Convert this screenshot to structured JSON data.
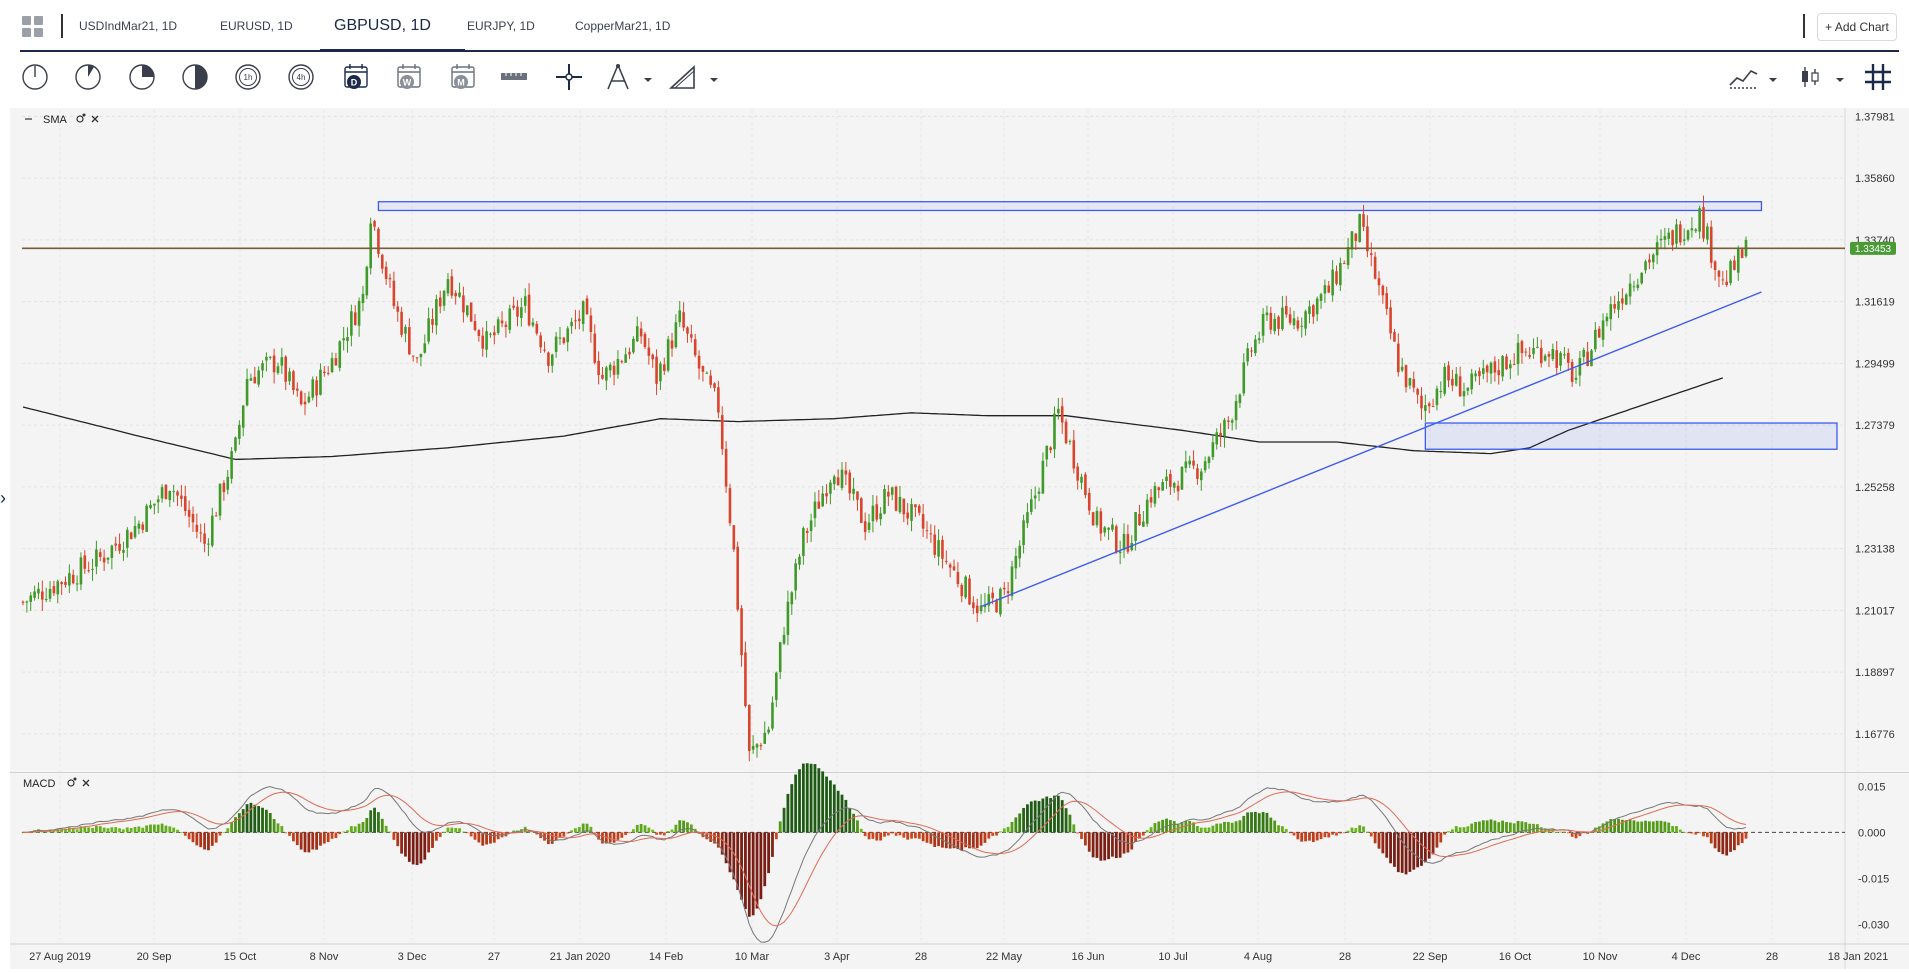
{
  "tabs": [
    {
      "label": "USDIndMar21, 1D",
      "active": false
    },
    {
      "label": "EURUSD, 1D",
      "active": false
    },
    {
      "label": "GBPUSD, 1D",
      "active": true
    },
    {
      "label": "EURJPY, 1D",
      "active": false
    },
    {
      "label": "CopperMar21, 1D",
      "active": false
    }
  ],
  "add_chart_label": "+ Add Chart",
  "toolbar": {
    "icons": [
      "clock-1-icon",
      "clock-2-icon",
      "clock-3-icon",
      "clock-4-icon",
      "clock-5-icon",
      "clock-6-icon",
      "calendar-day-icon",
      "calendar-week-icon",
      "calendar-month-icon",
      "ruler-icon",
      "crosshair-icon",
      "drawing-tool-icon",
      "pen-tool-icon",
      "line-style-icon",
      "candle-type-icon",
      "grid-toggle-icon"
    ],
    "calendar_letters": [
      "D",
      "W",
      "M"
    ]
  },
  "colors": {
    "bull": "#3f9a2a",
    "bear": "#d9452c",
    "accent": "#1b2a4a",
    "draw": "#3d5cf0",
    "sma": "#222222",
    "hline": "#7a5c33",
    "price_badge": "#4a9a36"
  },
  "price_panel": {
    "indicator_label": "SMA",
    "last_price": "1.33453"
  },
  "macd_panel": {
    "indicator_label": "MACD"
  },
  "chart_data": {
    "type": "candlestick",
    "symbol": "GBPUSD, 1D",
    "x_tick_labels": [
      "27 Aug 2019",
      "20 Sep",
      "15 Oct",
      "8 Nov",
      "3 Dec",
      "27",
      "21 Jan 2020",
      "14 Feb",
      "10 Mar",
      "3 Apr",
      "28",
      "22 May",
      "16 Jun",
      "10 Jul",
      "4 Aug",
      "28",
      "22 Sep",
      "16 Oct",
      "10 Nov",
      "4 Dec",
      "28",
      "18 Jan 2021"
    ],
    "y_ticks": [
      1.37981,
      1.3586,
      1.3374,
      1.31619,
      1.29499,
      1.27379,
      1.25258,
      1.23138,
      1.21017,
      1.18897,
      1.16776
    ],
    "ylim": [
      1.155,
      1.382
    ],
    "last_price": 1.33453,
    "price_path": [
      [
        0,
        1.213
      ],
      [
        20,
        1.228
      ],
      [
        30,
        1.24
      ],
      [
        38,
        1.254
      ],
      [
        47,
        1.233
      ],
      [
        55,
        1.266
      ],
      [
        58,
        1.29
      ],
      [
        66,
        1.296
      ],
      [
        72,
        1.28
      ],
      [
        80,
        1.296
      ],
      [
        88,
        1.318
      ],
      [
        90,
        1.347
      ],
      [
        96,
        1.315
      ],
      [
        102,
        1.295
      ],
      [
        110,
        1.325
      ],
      [
        120,
        1.302
      ],
      [
        130,
        1.315
      ],
      [
        136,
        1.298
      ],
      [
        145,
        1.312
      ],
      [
        150,
        1.29
      ],
      [
        160,
        1.305
      ],
      [
        164,
        1.29
      ],
      [
        170,
        1.31
      ],
      [
        176,
        1.29
      ],
      [
        180,
        1.28
      ],
      [
        184,
        1.23
      ],
      [
        188,
        1.16
      ],
      [
        193,
        1.17
      ],
      [
        197,
        1.205
      ],
      [
        202,
        1.235
      ],
      [
        210,
        1.26
      ],
      [
        218,
        1.24
      ],
      [
        224,
        1.25
      ],
      [
        232,
        1.24
      ],
      [
        240,
        1.225
      ],
      [
        248,
        1.21
      ],
      [
        254,
        1.215
      ],
      [
        262,
        1.25
      ],
      [
        268,
        1.278
      ],
      [
        278,
        1.24
      ],
      [
        285,
        1.232
      ],
      [
        292,
        1.25
      ],
      [
        305,
        1.26
      ],
      [
        312,
        1.275
      ],
      [
        318,
        1.3
      ],
      [
        322,
        1.31
      ],
      [
        330,
        1.31
      ],
      [
        338,
        1.32
      ],
      [
        346,
        1.342
      ],
      [
        350,
        1.325
      ],
      [
        356,
        1.295
      ],
      [
        362,
        1.279
      ],
      [
        368,
        1.29
      ],
      [
        374,
        1.286
      ],
      [
        386,
        1.298
      ],
      [
        395,
        1.3
      ],
      [
        402,
        1.29
      ],
      [
        410,
        1.312
      ],
      [
        420,
        1.33
      ],
      [
        428,
        1.34
      ],
      [
        434,
        1.346
      ],
      [
        440,
        1.322
      ],
      [
        446,
        1.334
      ]
    ],
    "sma200": [
      [
        0,
        1.28
      ],
      [
        30,
        1.27
      ],
      [
        55,
        1.262
      ],
      [
        80,
        1.263
      ],
      [
        110,
        1.266
      ],
      [
        140,
        1.27
      ],
      [
        165,
        1.276
      ],
      [
        185,
        1.275
      ],
      [
        210,
        1.276
      ],
      [
        230,
        1.278
      ],
      [
        250,
        1.277
      ],
      [
        270,
        1.277
      ],
      [
        300,
        1.272
      ],
      [
        320,
        1.268
      ],
      [
        340,
        1.268
      ],
      [
        360,
        1.265
      ],
      [
        380,
        1.264
      ],
      [
        390,
        1.266
      ],
      [
        400,
        1.272
      ],
      [
        420,
        1.281
      ],
      [
        440,
        1.29
      ]
    ],
    "resistance_zone": {
      "low": 1.3475,
      "high": 1.3505,
      "x_start": 92,
      "x_end": 450
    },
    "support_zone": {
      "low": 1.2655,
      "high": 1.2745,
      "x_start": 363,
      "x_end": 470
    },
    "horizontal_line": 1.3345,
    "trendline": [
      [
        248,
        1.2115
      ],
      [
        450,
        1.3195
      ]
    ],
    "candles_count": 447,
    "macd": {
      "y_ticks": [
        0.015,
        0.0,
        -0.015,
        -0.03
      ],
      "ylim": [
        -0.035,
        0.019
      ]
    }
  }
}
